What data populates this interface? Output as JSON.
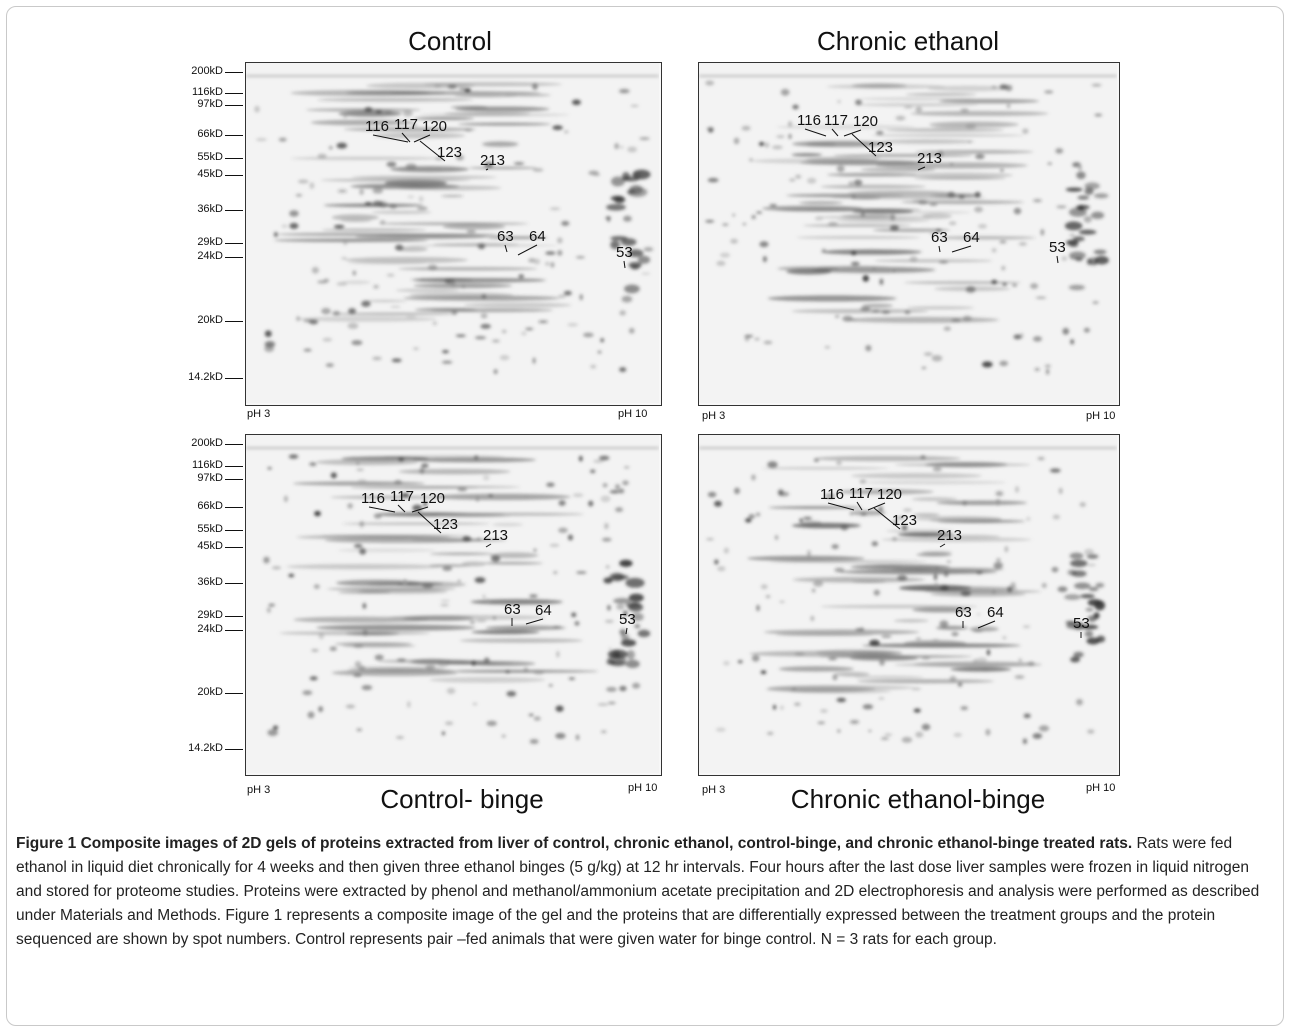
{
  "panels": [
    {
      "title": "Control",
      "ph_left": "pH 3",
      "ph_right": "pH 10"
    },
    {
      "title": "Chronic ethanol",
      "ph_left": "pH 3",
      "ph_right": "pH 10"
    },
    {
      "title": "Control- binge",
      "ph_left": "pH 3",
      "ph_right": "pH 10"
    },
    {
      "title": "Chronic ethanol-binge",
      "ph_left": "pH 3",
      "ph_right": "pH 10"
    }
  ],
  "mw_markers": [
    "200kD",
    "116kD",
    "97kD",
    "66kD",
    "55kD",
    "45kD",
    "36kD",
    "29kD",
    "24kD",
    "20kD",
    "14.2kD"
  ],
  "spot_labels": [
    "116",
    "117",
    "120",
    "123",
    "213",
    "63",
    "64",
    "53"
  ],
  "caption": {
    "title": "Figure 1 Composite images of 2D gels of proteins extracted from liver of control, chronic ethanol, control-binge, and chronic ethanol-binge treated rats.",
    "body": " Rats were fed ethanol in liquid diet chronically for 4 weeks and then given three ethanol binges (5 g/kg) at 12 hr intervals. Four hours after the last dose liver samples were frozen in liquid nitrogen and stored for proteome studies. Proteins were extracted by phenol and methanol/ammonium acetate precipitation and 2D electrophoresis and analysis were performed as described under Materials and Methods. Figure 1 represents a composite image of the gel and the proteins that are differentially expressed between the treatment groups and the protein sequenced are shown by spot numbers. Control represents pair –fed animals that were given water for binge control.  N = 3 rats for each group."
  }
}
